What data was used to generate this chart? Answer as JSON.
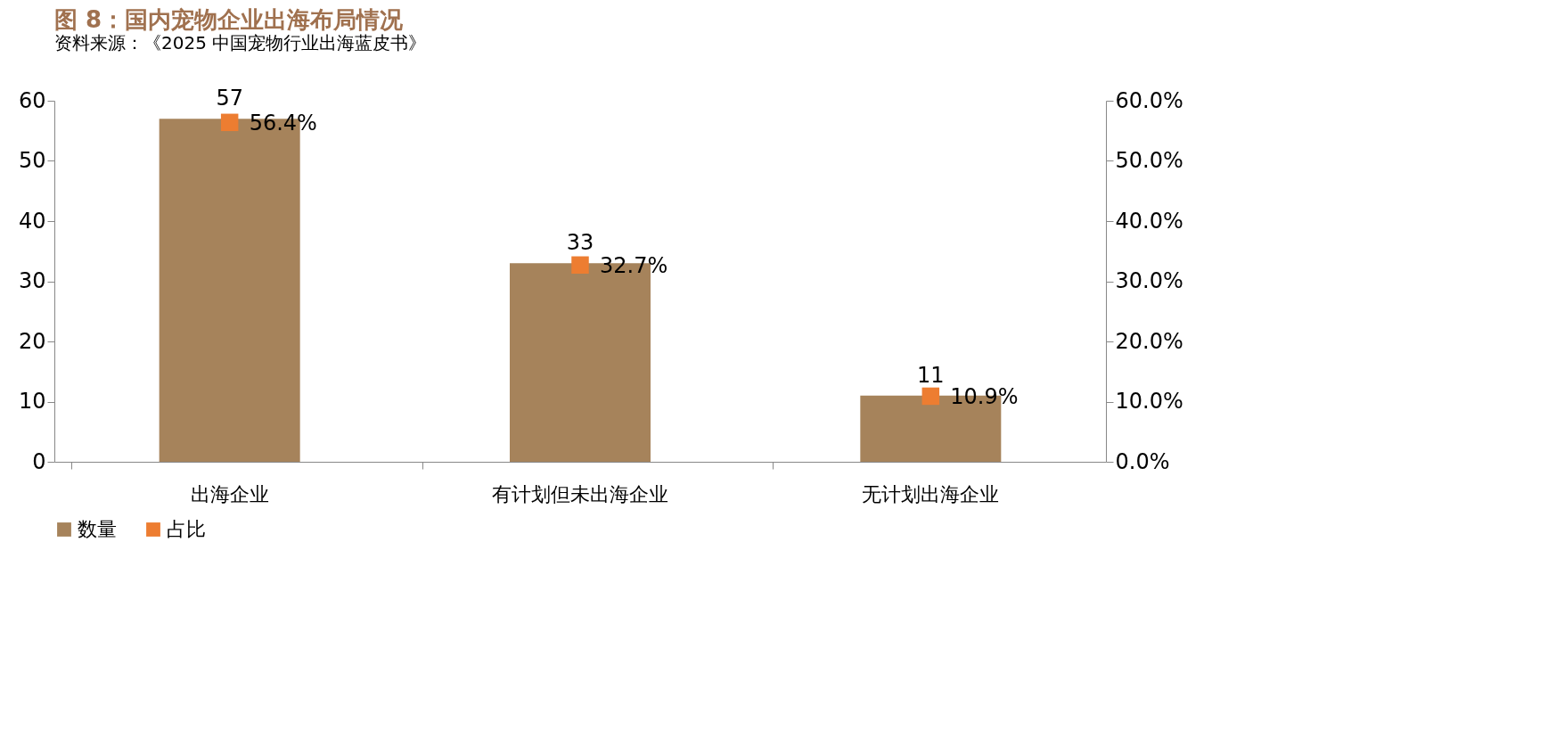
{
  "chart_data": {
    "type": "bar",
    "title": "图 8：国内宠物企业出海布局情况",
    "categories": [
      "出海企业",
      "有计划但未出海企业",
      "无计划出海企业"
    ],
    "series": [
      {
        "name": "数量",
        "color": "#a6835b",
        "values": [
          57,
          33,
          11
        ],
        "value_labels": [
          "57",
          "33",
          "11"
        ]
      },
      {
        "name": "占比",
        "type": "scatter",
        "axis": "y2",
        "marker": "square",
        "color": "#ed7d31",
        "values": [
          56.4,
          32.7,
          10.9
        ],
        "value_labels": [
          "56.4%",
          "32.7%",
          "10.9%"
        ]
      }
    ],
    "ylim": [
      0,
      60
    ],
    "yticks": [
      0,
      10,
      20,
      30,
      40,
      50,
      60
    ],
    "y2lim": [
      0,
      60
    ],
    "y2ticks": [
      {
        "value": 0,
        "label": "0.0%"
      },
      {
        "value": 10,
        "label": "10.0%"
      },
      {
        "value": 20,
        "label": "20.0%"
      },
      {
        "value": 30,
        "label": "30.0%"
      },
      {
        "value": 40,
        "label": "40.0%"
      },
      {
        "value": 50,
        "label": "50.0%"
      },
      {
        "value": 60,
        "label": "60.0%"
      }
    ],
    "legend": "bottom",
    "grid": false,
    "annotations": [
      "资料来源：《2025 中国宠物行业出海蓝皮书》"
    ]
  }
}
